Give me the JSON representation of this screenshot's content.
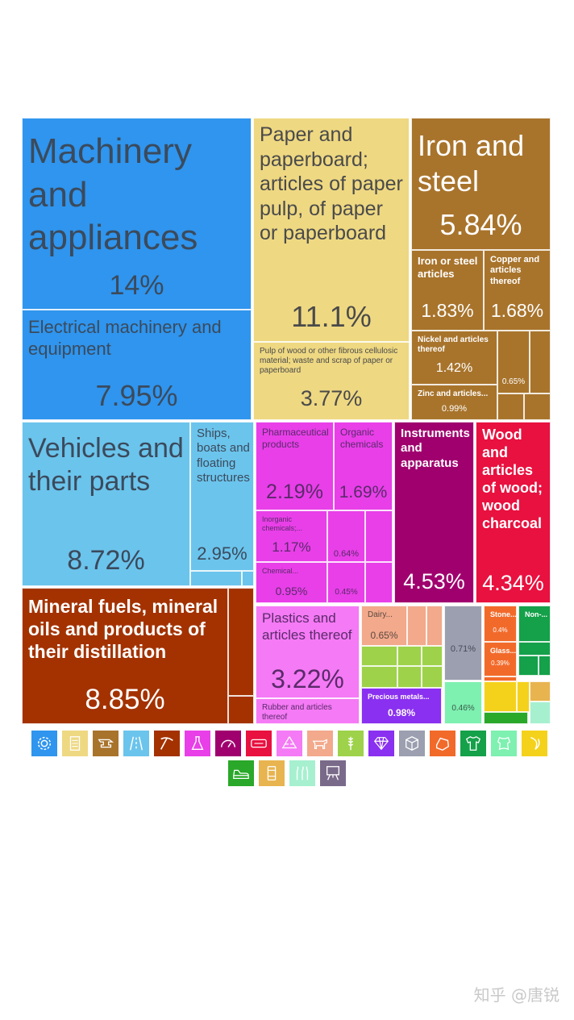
{
  "chart_data": {
    "type": "treemap",
    "tiles": [
      {
        "id": "machinery",
        "label": "Machinery and appliances",
        "value": 14,
        "display": "14%",
        "color": "#2f95ee",
        "text_color": "#3b4a5c"
      },
      {
        "id": "electrical",
        "label": "Electrical machinery and equipment",
        "value": 7.95,
        "display": "7.95%",
        "color": "#2f95ee",
        "text_color": "#3b4a5c"
      },
      {
        "id": "paper",
        "label": "Paper and paperboard; articles of paper pulp, of paper or paperboard",
        "value": 11.1,
        "display": "11.1%",
        "color": "#eed882",
        "text_color": "#4a4a4a"
      },
      {
        "id": "pulp",
        "label": "Pulp of wood or other fibrous cellulosic material; waste and scrap of paper or paperboard",
        "value": 3.77,
        "display": "3.77%",
        "color": "#eed882",
        "text_color": "#4a4a4a"
      },
      {
        "id": "iron",
        "label": "Iron and steel",
        "value": 5.84,
        "display": "5.84%",
        "color": "#a8742c",
        "text_color": "#ffffff"
      },
      {
        "id": "iron_articles",
        "label": "Iron or steel articles",
        "value": 1.83,
        "display": "1.83%",
        "color": "#a8742c",
        "text_color": "#ffffff"
      },
      {
        "id": "copper",
        "label": "Copper and articles thereof",
        "value": 1.68,
        "display": "1.68%",
        "color": "#a8742c",
        "text_color": "#ffffff"
      },
      {
        "id": "nickel",
        "label": "Nickel and articles thereof",
        "value": 1.42,
        "display": "1.42%",
        "color": "#a8742c",
        "text_color": "#ffffff"
      },
      {
        "id": "zinc",
        "label": "Zinc and articles...",
        "value": 0.99,
        "display": "0.99%",
        "color": "#a8742c",
        "text_color": "#ffffff"
      },
      {
        "id": "metal_small",
        "label": "",
        "value": 0.65,
        "display": "0.65%",
        "color": "#a8742c",
        "text_color": "#ffffff"
      },
      {
        "id": "vehicles",
        "label": "Vehicles and their parts",
        "value": 8.72,
        "display": "8.72%",
        "color": "#6bc4ec",
        "text_color": "#3b4a5c"
      },
      {
        "id": "ships",
        "label": "Ships, boats and floating structures",
        "value": 2.95,
        "display": "2.95%",
        "color": "#6bc4ec",
        "text_color": "#3b4a5c"
      },
      {
        "id": "pharma",
        "label": "Pharmaceutical products",
        "value": 2.19,
        "display": "2.19%",
        "color": "#e83fe8",
        "text_color": "#5a2a6a"
      },
      {
        "id": "organic",
        "label": "Organic chemicals",
        "value": 1.69,
        "display": "1.69%",
        "color": "#e83fe8",
        "text_color": "#5a2a6a"
      },
      {
        "id": "inorganic",
        "label": "Inorganic chemicals;...",
        "value": 1.17,
        "display": "1.17%",
        "color": "#e83fe8",
        "text_color": "#5a2a6a"
      },
      {
        "id": "chem_small1",
        "label": "",
        "value": 0.64,
        "display": "0.64%",
        "color": "#e83fe8",
        "text_color": "#5a2a6a"
      },
      {
        "id": "chemical",
        "label": "Chemical...",
        "value": 0.95,
        "display": "0.95%",
        "color": "#e83fe8",
        "text_color": "#5a2a6a"
      },
      {
        "id": "chem_small2",
        "label": "",
        "value": 0.45,
        "display": "0.45%",
        "color": "#e83fe8",
        "text_color": "#5a2a6a"
      },
      {
        "id": "instruments",
        "label": "Instruments and apparatus",
        "value": 4.53,
        "display": "4.53%",
        "color": "#a0006e",
        "text_color": "#ffffff"
      },
      {
        "id": "wood",
        "label": "Wood and articles of wood; wood charcoal",
        "value": 4.34,
        "display": "4.34%",
        "color": "#e8113f",
        "text_color": "#ffffff"
      },
      {
        "id": "mineral",
        "label": "Mineral fuels, mineral oils and products of their distillation",
        "value": 8.85,
        "display": "8.85%",
        "color": "#a33200",
        "text_color": "#ffffff"
      },
      {
        "id": "plastics",
        "label": "Plastics and articles thereof",
        "value": 3.22,
        "display": "3.22%",
        "color": "#f57af5",
        "text_color": "#5a2a6a"
      },
      {
        "id": "rubber",
        "label": "Rubber and articles thereof",
        "value": null,
        "display": "",
        "color": "#f57af5",
        "text_color": "#5a2a6a"
      },
      {
        "id": "dairy",
        "label": "Dairy...",
        "value": 0.65,
        "display": "0.65%",
        "color": "#f2a98c",
        "text_color": "#5a4a40"
      },
      {
        "id": "misc_gray",
        "label": "",
        "value": 0.71,
        "display": "0.71%",
        "color": "#9b9faf",
        "text_color": "#4a4a5a"
      },
      {
        "id": "stone",
        "label": "Stone...",
        "value": 0.4,
        "display": "0.4%",
        "color": "#f26a2a",
        "text_color": "#ffffff"
      },
      {
        "id": "glass",
        "label": "Glass...",
        "value": 0.39,
        "display": "0.39%",
        "color": "#f26a2a",
        "text_color": "#ffffff"
      },
      {
        "id": "nonknit",
        "label": "Non-...",
        "value": null,
        "display": "",
        "color": "#15a04a",
        "text_color": "#ffffff"
      },
      {
        "id": "precious",
        "label": "Precious metals...",
        "value": 0.98,
        "display": "0.98%",
        "color": "#8a30f0",
        "text_color": "#ffffff"
      },
      {
        "id": "hides",
        "label": "",
        "value": 0.46,
        "display": "0.46%",
        "color": "#7ef0b0",
        "text_color": "#3a5a4a"
      }
    ]
  },
  "legend": [
    {
      "icon": "gear-icon",
      "color": "#2f95ee"
    },
    {
      "icon": "paper-icon",
      "color": "#eed882"
    },
    {
      "icon": "anvil-icon",
      "color": "#a8742c"
    },
    {
      "icon": "road-icon",
      "color": "#6bc4ec"
    },
    {
      "icon": "pickaxe-icon",
      "color": "#a33200"
    },
    {
      "icon": "flask-icon",
      "color": "#e83fe8"
    },
    {
      "icon": "gauge-icon",
      "color": "#a0006e"
    },
    {
      "icon": "ticket-icon",
      "color": "#e8113f"
    },
    {
      "icon": "recycle-icon",
      "color": "#f57af5"
    },
    {
      "icon": "animal-icon",
      "color": "#f2a98c"
    },
    {
      "icon": "wheat-icon",
      "color": "#9ed24a"
    },
    {
      "icon": "gem-icon",
      "color": "#8a30f0"
    },
    {
      "icon": "box-icon",
      "color": "#9b9faf"
    },
    {
      "icon": "stone-icon",
      "color": "#f26a2a"
    },
    {
      "icon": "shirt-icon",
      "color": "#15a04a"
    },
    {
      "icon": "leather-icon",
      "color": "#7ef0b0"
    },
    {
      "icon": "banana-icon",
      "color": "#f4d21c"
    },
    {
      "icon": "shoe-icon",
      "color": "#2aa82a"
    },
    {
      "icon": "can-icon",
      "color": "#e8b450"
    },
    {
      "icon": "bottles-icon",
      "color": "#a6f0d0"
    },
    {
      "icon": "easel-icon",
      "color": "#7a6a8a"
    }
  ],
  "watermark": "知乎 @唐锐"
}
